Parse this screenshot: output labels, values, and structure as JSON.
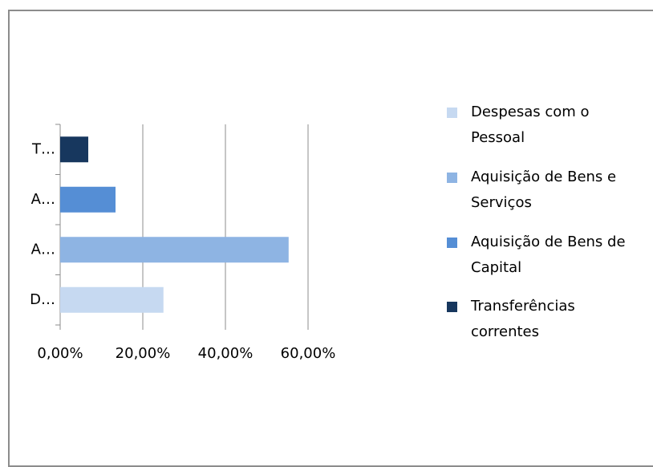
{
  "chart_data": {
    "type": "bar",
    "orientation": "horizontal",
    "categories": [
      "D…",
      "A…",
      "A…",
      "T…"
    ],
    "values": [
      25.0,
      55.3,
      13.4,
      6.8
    ],
    "colors": [
      "#c6d9f1",
      "#8eb4e3",
      "#558ed5",
      "#17375e"
    ],
    "legend": [
      "Despesas com o Pessoal",
      "Aquisição de Bens e Serviços",
      "Aquisição de Bens de Capital",
      "Transferências correntes"
    ],
    "xlim": [
      0,
      60
    ],
    "xticks": [
      {
        "value": 0,
        "label": "0,00%"
      },
      {
        "value": 20,
        "label": "20,00%"
      },
      {
        "value": 40,
        "label": "40,00%"
      },
      {
        "value": 60,
        "label": "60,00%"
      }
    ],
    "grid": true,
    "legend_position": "right"
  }
}
